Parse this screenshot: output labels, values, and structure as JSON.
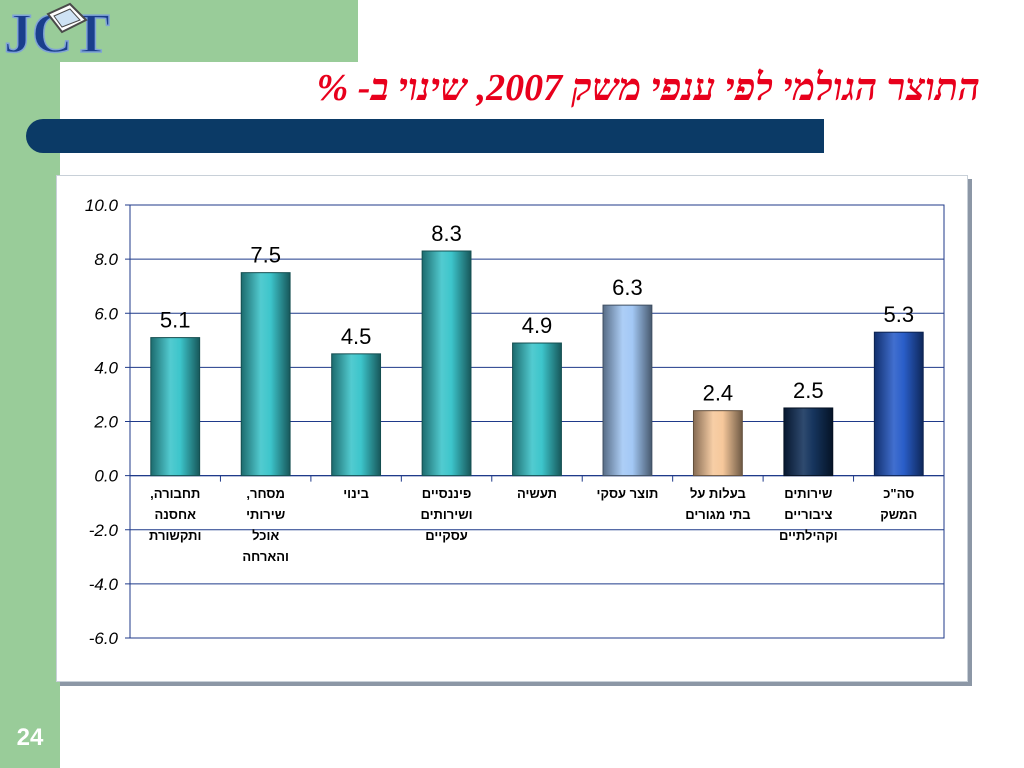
{
  "slide": {
    "title": "התוצר הגולמי לפי ענפי משק 2007, שינוי ב- %",
    "page_number": "24",
    "logo_text": "JCT"
  },
  "colors": {
    "side_panel": "#99cc99",
    "title_text": "#e8001c",
    "title_bar": "#0b3a66"
  },
  "chart_data": {
    "type": "bar",
    "title": "",
    "xlabel": "",
    "ylabel": "",
    "ylim": [
      -6.0,
      10.0
    ],
    "yticks": [
      10.0,
      8.0,
      6.0,
      4.0,
      2.0,
      0.0,
      -2.0,
      -4.0,
      -6.0
    ],
    "ytick_labels": [
      "10.0",
      "8.0",
      "6.0",
      "4.0",
      "2.0",
      "0.0",
      "-2.0",
      "-4.0",
      "-6.0"
    ],
    "grid": true,
    "categories": [
      "תחבורה, אחסנה ותקשורת",
      "מסחר, שירותי אוכל והארחה",
      "בינוי",
      "פיננסיים ושירותים עסקיים",
      "תעשיה",
      "תוצר עסקי",
      "בעלות על בתי מגורים",
      "שירותים ציבוריים וקהילתיים",
      "סה\"כ המשק"
    ],
    "category_lines": [
      [
        "תחבורה,",
        "אחסנה",
        "ותקשורת"
      ],
      [
        "מסחר,",
        "שירותי",
        "אוכל",
        "והארחה"
      ],
      [
        "בינוי"
      ],
      [
        "פיננסיים",
        "ושירותים",
        "עסקיים"
      ],
      [
        "תעשיה"
      ],
      [
        "תוצר עסקי"
      ],
      [
        "בעלות על",
        "בתי מגורים"
      ],
      [
        "שירותים",
        "ציבוריים",
        "וקהילתיים"
      ],
      [
        "סה\"כ",
        "המשק"
      ]
    ],
    "values": [
      5.1,
      7.5,
      4.5,
      8.3,
      4.9,
      6.3,
      2.4,
      2.5,
      5.3
    ],
    "value_labels": [
      "5.1",
      "7.5",
      "4.5",
      "8.3",
      "4.9",
      "6.3",
      "2.4",
      "2.5",
      "5.3"
    ],
    "bar_colors": [
      "#33c2c8",
      "#33c2c8",
      "#33c2c8",
      "#33c2c8",
      "#33c2c8",
      "#9ec5f4",
      "#f5c596",
      "#0a2a55",
      "#1f56c6"
    ]
  }
}
